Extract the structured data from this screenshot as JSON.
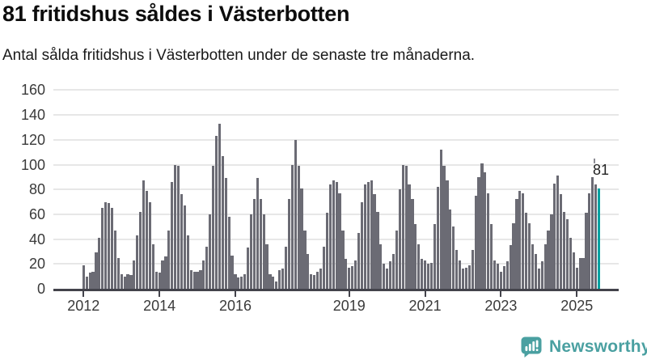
{
  "header": {
    "title": "81 fritidshus såldes i Västerbotten",
    "subtitle": "Antal sålda fritidshus i Västerbotten under de senaste tre månaderna."
  },
  "annotation": {
    "label": "81"
  },
  "logo": {
    "text": "Newsworthy"
  },
  "colors": {
    "bar": "#6b6b74",
    "highlight": "#00a1a1",
    "grid": "#e7e7e7",
    "axis": "#43434b",
    "logo_teal": "#4aa0a1",
    "title_text": "#0d0d0d"
  },
  "chart_data": {
    "type": "bar",
    "title": "81 fritidshus såldes i Västerbotten",
    "subtitle": "Antal sålda fritidshus i Västerbotten under de senaste tre månaderna.",
    "xlabel": "",
    "ylabel": "",
    "x_start": "2012-01",
    "x_end": "2025-08",
    "ylim": [
      0,
      160
    ],
    "grid": true,
    "y_ticks": [
      0,
      20,
      40,
      60,
      80,
      100,
      120,
      140,
      160
    ],
    "x_ticks": [
      {
        "label": "2012",
        "month_index": 0
      },
      {
        "label": "2014",
        "month_index": 24
      },
      {
        "label": "2016",
        "month_index": 48
      },
      {
        "label": "2019",
        "month_index": 84
      },
      {
        "label": "2021",
        "month_index": 108
      },
      {
        "label": "2023",
        "month_index": 132
      },
      {
        "label": "2025",
        "month_index": 156
      }
    ],
    "values": [
      19,
      10,
      13,
      14,
      29,
      41,
      65,
      70,
      69,
      65,
      47,
      25,
      12,
      10,
      12,
      11,
      23,
      43,
      62,
      87,
      79,
      70,
      36,
      14,
      13,
      23,
      26,
      47,
      86,
      100,
      99,
      76,
      67,
      43,
      15,
      14,
      14,
      15,
      23,
      34,
      60,
      99,
      123,
      133,
      107,
      89,
      58,
      27,
      12,
      9,
      10,
      12,
      33,
      60,
      72,
      89,
      72,
      60,
      36,
      12,
      10,
      6,
      15,
      16,
      34,
      72,
      100,
      120,
      99,
      81,
      47,
      28,
      12,
      11,
      14,
      16,
      34,
      61,
      84,
      87,
      86,
      77,
      47,
      24,
      17,
      18,
      23,
      45,
      70,
      84,
      86,
      87,
      76,
      62,
      36,
      20,
      16,
      22,
      28,
      47,
      80,
      100,
      99,
      84,
      72,
      52,
      36,
      24,
      23,
      20,
      21,
      52,
      82,
      112,
      99,
      87,
      64,
      50,
      31,
      23,
      16,
      17,
      19,
      31,
      75,
      90,
      101,
      94,
      77,
      52,
      23,
      20,
      14,
      18,
      22,
      35,
      53,
      72,
      79,
      77,
      61,
      53,
      36,
      28,
      16,
      22,
      36,
      47,
      60,
      85,
      91,
      76,
      62,
      56,
      41,
      29,
      17,
      25,
      25,
      61,
      77,
      90,
      84,
      81
    ],
    "highlight_last": true,
    "highlight_value": 81,
    "legend": null
  }
}
